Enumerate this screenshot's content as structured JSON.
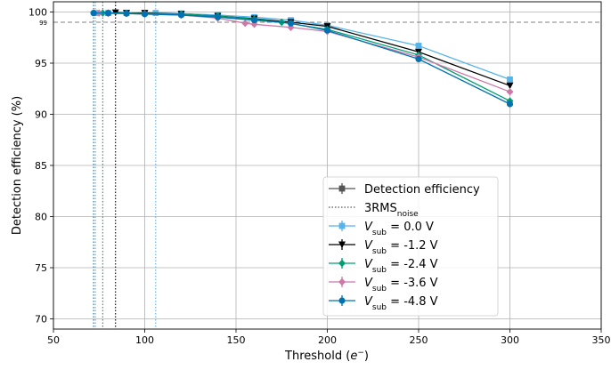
{
  "chart_data": {
    "type": "line",
    "xlabel_main": "Threshold (",
    "xlabel_var": "e",
    "xlabel_sup": "−",
    "xlabel_end": ")",
    "ylabel": "Detection efficiency (%)",
    "xlim": [
      50,
      350
    ],
    "ylim": [
      69,
      101
    ],
    "x_ticks": [
      "50",
      "100",
      "150",
      "200",
      "250",
      "300",
      "350"
    ],
    "y_ticks": [
      "70",
      "75",
      "80",
      "85",
      "90",
      "95",
      "100"
    ],
    "grid": true,
    "reference_line": {
      "y": 99,
      "label": "99"
    },
    "threshold_lines": [
      {
        "x": 73,
        "series": "0.0"
      },
      {
        "x": 72,
        "series": "-4.8"
      },
      {
        "x": 77,
        "series": "-2.4"
      },
      {
        "x": 84,
        "series": "-1.2"
      },
      {
        "x": 106,
        "series": "0.0b"
      }
    ],
    "legend": {
      "placement": "lower-right",
      "efficiency_label": "Detection efficiency",
      "rms_label": "3RMS",
      "rms_sub": "noise",
      "vsub_var": "V",
      "vsub_sub": "sub",
      "vsub_eq": " = "
    },
    "series": [
      {
        "name": "0.0 V",
        "label_value": " 0.0 V",
        "color": "#56B4E9",
        "marker": "square",
        "x": [
          73,
          80,
          90,
          100,
          106,
          120,
          140,
          160,
          180,
          200,
          250,
          300
        ],
        "y": [
          99.9,
          99.9,
          99.9,
          99.9,
          99.9,
          99.85,
          99.7,
          99.5,
          99.2,
          98.7,
          96.7,
          93.4
        ]
      },
      {
        "name": "-1.2 V",
        "label_value": "-1.2 V",
        "color": "#000000",
        "marker": "triangle-down",
        "x": [
          84,
          90,
          100,
          120,
          140,
          160,
          180,
          200,
          250,
          300
        ],
        "y": [
          99.95,
          99.9,
          99.9,
          99.8,
          99.6,
          99.35,
          99.0,
          98.6,
          96.1,
          92.8
        ]
      },
      {
        "name": "-2.4 V",
        "label_value": "-2.4 V",
        "color": "#009E73",
        "marker": "diamond",
        "x": [
          77,
          80,
          90,
          100,
          120,
          140,
          160,
          175,
          200,
          250,
          300
        ],
        "y": [
          99.9,
          99.9,
          99.9,
          99.85,
          99.8,
          99.6,
          99.3,
          99.0,
          98.3,
          95.8,
          91.3
        ]
      },
      {
        "name": "-3.6 V",
        "label_value": "-3.6 V",
        "color": "#CC79A7",
        "marker": "diamond",
        "x": [
          75,
          80,
          90,
          100,
          120,
          140,
          155,
          160,
          180,
          200,
          250,
          300
        ],
        "y": [
          99.9,
          99.85,
          99.85,
          99.8,
          99.7,
          99.4,
          98.9,
          98.8,
          98.5,
          98.1,
          95.6,
          92.2
        ]
      },
      {
        "name": "-4.8 V",
        "label_value": "-4.8 V",
        "color": "#0072B2",
        "marker": "circle",
        "x": [
          72,
          80,
          90,
          100,
          120,
          140,
          160,
          180,
          200,
          250,
          300
        ],
        "y": [
          99.9,
          99.9,
          99.85,
          99.8,
          99.7,
          99.5,
          99.2,
          98.9,
          98.2,
          95.4,
          91.0
        ]
      }
    ]
  }
}
